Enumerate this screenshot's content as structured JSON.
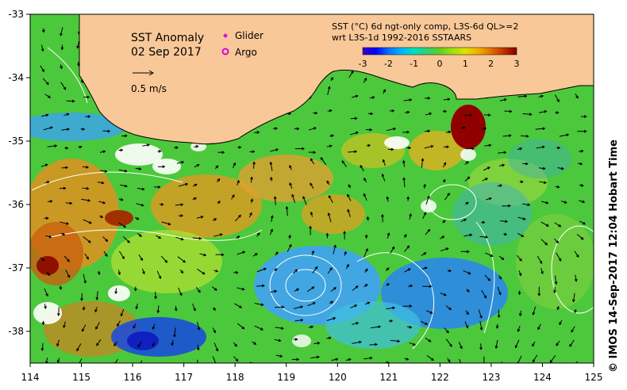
{
  "title": "SST Anomaly",
  "date": "02 Sep 2017",
  "legend": {
    "glider": "Glider",
    "argo": "Argo",
    "glider_color": "#e000e0",
    "argo_color": "#e000e0"
  },
  "vector_scale": "0.5 m/s",
  "colorbar": {
    "title_line1": "SST (°C) 6d ngt-only comp, L3S-6d QL>=2",
    "title_line2": "wrt L3S-1d 1992-2016 SSTAARS",
    "ticks": [
      "-3",
      "-2",
      "-1",
      "0",
      "1",
      "2",
      "3"
    ],
    "colors": [
      "#3a00c8",
      "#0000ff",
      "#0070ff",
      "#00b4ff",
      "#00e0c0",
      "#30d070",
      "#60d020",
      "#a0e010",
      "#e0e000",
      "#f0b000",
      "#e07000",
      "#c03000",
      "#800000"
    ]
  },
  "axes": {
    "x_ticks": [
      "114",
      "115",
      "116",
      "117",
      "118",
      "119",
      "120",
      "121",
      "122",
      "123",
      "124",
      "125"
    ],
    "y_ticks": [
      "-33",
      "-34",
      "-35",
      "-36",
      "-37",
      "-38"
    ]
  },
  "credit": "© IMOS 14-Sep-2017 12:04 Hobart Time",
  "colors": {
    "land": "#f9c898",
    "ocean_base": "#4cc83c",
    "frame": "#000000"
  }
}
